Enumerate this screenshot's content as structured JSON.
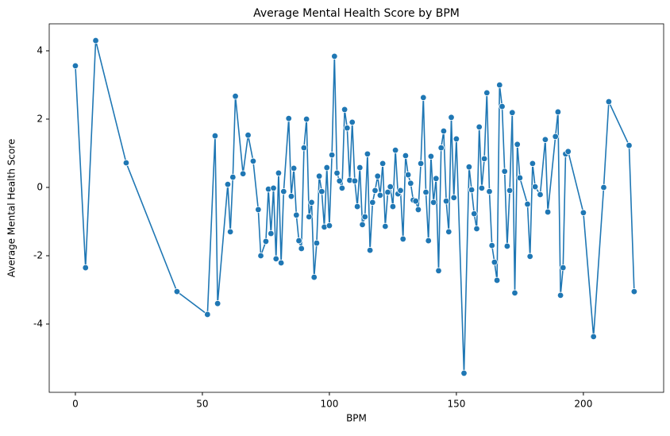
{
  "chart_data": {
    "type": "line",
    "title": "Average Mental Health Score by BPM",
    "x_label": "BPM",
    "y_label": "Average Mental Health Score",
    "x": [
      0,
      4,
      8,
      20,
      40,
      52,
      55,
      56,
      60,
      61,
      62,
      63,
      66,
      68,
      70,
      72,
      73,
      75,
      76,
      77,
      78,
      79,
      80,
      81,
      82,
      84,
      85,
      86,
      87,
      88,
      89,
      90,
      91,
      92,
      93,
      94,
      95,
      96,
      97,
      98,
      99,
      100,
      101,
      102,
      103,
      104,
      105,
      106,
      107,
      108,
      109,
      110,
      111,
      112,
      113,
      114,
      115,
      116,
      117,
      118,
      119,
      120,
      121,
      122,
      123,
      124,
      125,
      126,
      127,
      128,
      129,
      130,
      131,
      132,
      133,
      134,
      135,
      136,
      137,
      138,
      139,
      140,
      141,
      142,
      143,
      144,
      145,
      146,
      147,
      148,
      149,
      150,
      153,
      155,
      156,
      157,
      158,
      159,
      160,
      161,
      162,
      163,
      164,
      165,
      166,
      167,
      168,
      169,
      170,
      171,
      172,
      173,
      174,
      175,
      178,
      179,
      180,
      181,
      183,
      185,
      186,
      189,
      190,
      191,
      192,
      193,
      194,
      200,
      204,
      208,
      210,
      218,
      220
    ],
    "series": [
      {
        "name": "Average Mental Health Score",
        "color": "#1f77b4",
        "values": [
          3.56,
          -2.35,
          4.3,
          0.72,
          -3.05,
          -3.72,
          1.51,
          -3.4,
          0.09,
          -1.3,
          0.3,
          2.67,
          0.4,
          1.53,
          0.77,
          -0.65,
          -2.0,
          -1.58,
          -0.05,
          -1.35,
          -0.02,
          -2.09,
          0.42,
          -2.21,
          -0.12,
          2.02,
          -0.26,
          0.56,
          -0.81,
          -1.56,
          -1.79,
          1.16,
          2.0,
          -0.86,
          -0.44,
          -2.63,
          -1.63,
          0.33,
          -0.12,
          -1.16,
          0.58,
          -1.12,
          0.95,
          3.84,
          0.42,
          0.19,
          -0.02,
          2.28,
          1.74,
          0.21,
          1.91,
          0.19,
          -0.56,
          0.58,
          -1.09,
          -0.86,
          0.98,
          -1.84,
          -0.44,
          -0.09,
          0.33,
          -0.23,
          0.7,
          -1.14,
          -0.14,
          0.02,
          -0.56,
          1.09,
          -0.19,
          -0.09,
          -1.51,
          0.93,
          0.37,
          0.12,
          -0.37,
          -0.4,
          -0.65,
          0.7,
          2.63,
          -0.14,
          -1.56,
          0.91,
          -0.44,
          0.26,
          -2.44,
          1.16,
          1.65,
          -0.4,
          -1.3,
          2.05,
          -0.3,
          1.42,
          -5.44,
          0.6,
          -0.07,
          -0.77,
          -1.21,
          1.77,
          -0.02,
          0.84,
          2.77,
          -0.12,
          -1.7,
          -2.19,
          -2.72,
          3.0,
          2.37,
          0.47,
          -1.72,
          -0.09,
          2.19,
          -3.09,
          1.26,
          0.28,
          -0.49,
          -2.02,
          0.7,
          0.02,
          -0.21,
          1.4,
          -0.72,
          1.49,
          2.21,
          -3.16,
          -2.35,
          0.98,
          1.05,
          -0.74,
          -4.37,
          0.0,
          2.51,
          1.23,
          -3.05
        ]
      }
    ],
    "xlim": [
      -10.3,
      231.6
    ],
    "ylim": [
      -6.0,
      4.79
    ],
    "xticks": [
      0,
      50,
      100,
      150,
      200
    ],
    "yticks": [
      -4,
      -2,
      0,
      2,
      4
    ],
    "grid": false
  }
}
